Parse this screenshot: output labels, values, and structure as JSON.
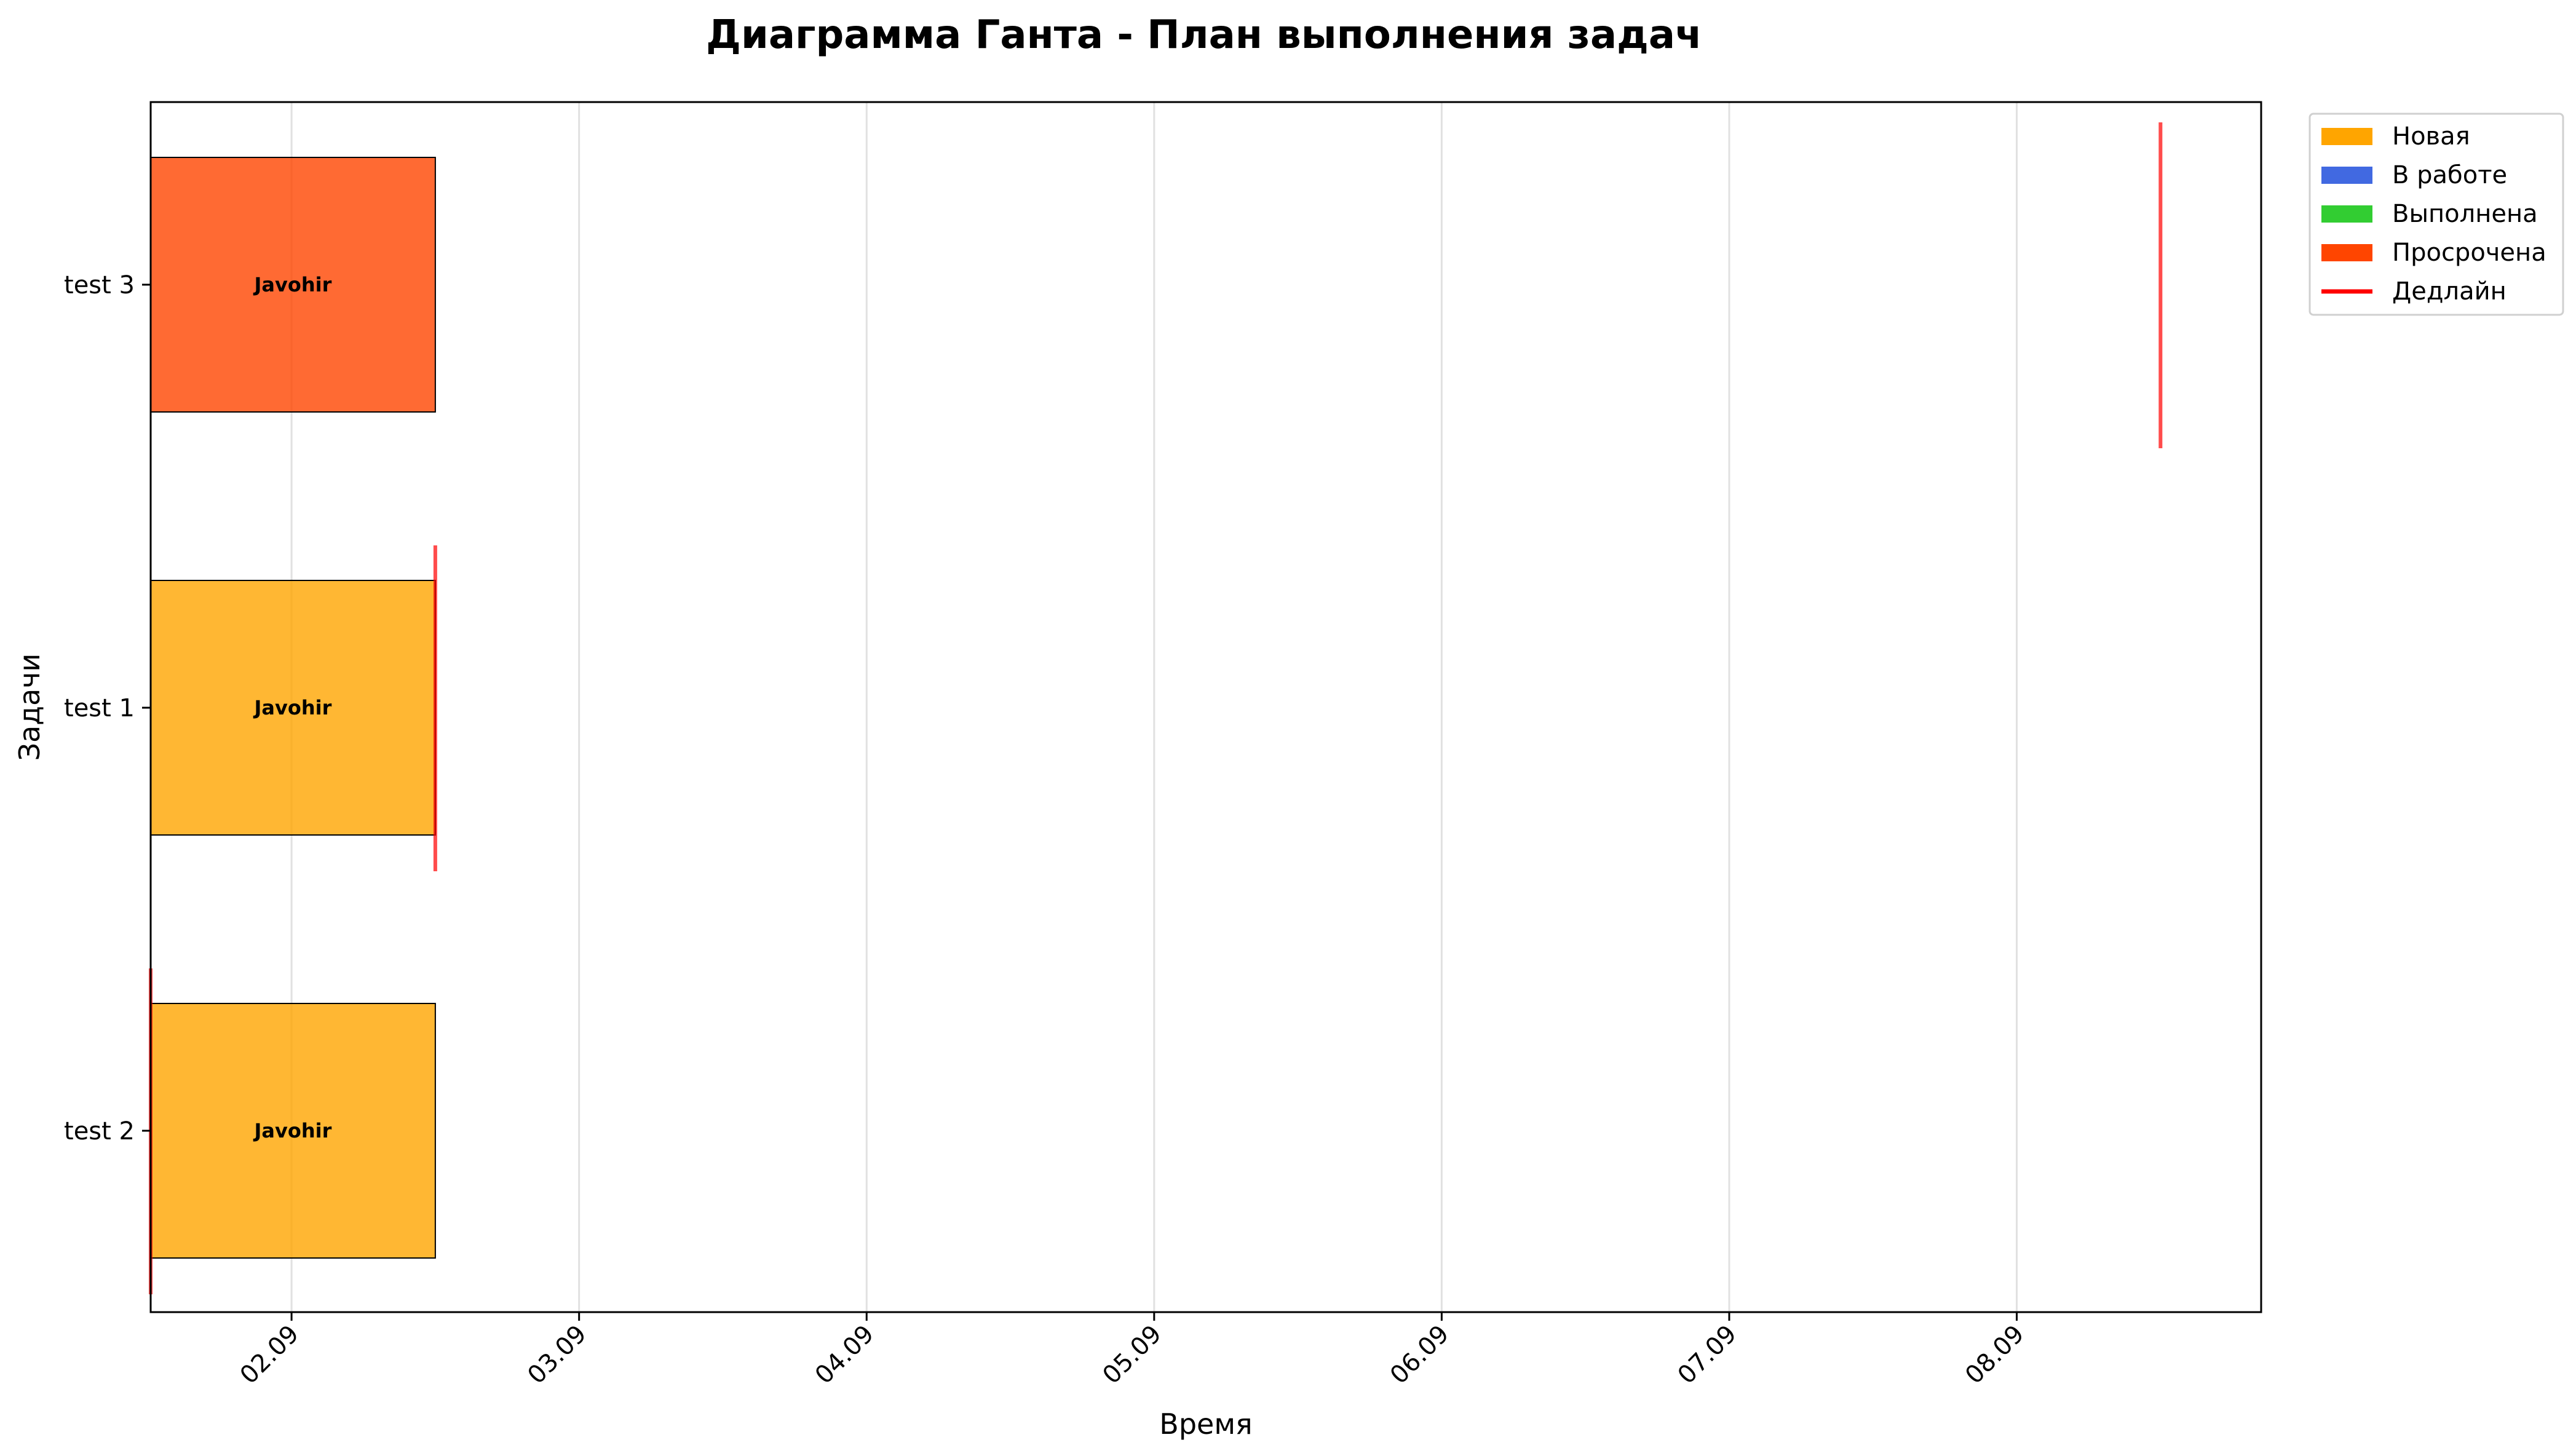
{
  "chart_data": {
    "type": "gantt",
    "title": "Диаграмма Ганта - План выполнения задач",
    "xlabel": "Время",
    "ylabel": "Задачи",
    "x_ticks": [
      "02.09",
      "03.09",
      "04.09",
      "05.09",
      "06.09",
      "07.09",
      "08.09"
    ],
    "x_range_days": [
      1.51,
      8.85
    ],
    "tasks": [
      {
        "name": "test 2",
        "assignee": "Javohir",
        "status": "Новая",
        "start": 1.51,
        "end": 2.5,
        "deadline": 1.51
      },
      {
        "name": "test 1",
        "assignee": "Javohir",
        "status": "Новая",
        "start": 1.51,
        "end": 2.5,
        "deadline": 2.5
      },
      {
        "name": "test 3",
        "assignee": "Javohir",
        "status": "Просрочена",
        "start": 1.51,
        "end": 2.5,
        "deadline": 8.5
      }
    ],
    "legend": {
      "placement": "outside-top-right",
      "items": [
        {
          "label": "Новая",
          "kind": "patch",
          "color": "#FFA500"
        },
        {
          "label": "В работе",
          "kind": "patch",
          "color": "#4169E1"
        },
        {
          "label": "Выполнена",
          "kind": "patch",
          "color": "#32CD32"
        },
        {
          "label": "Просрочена",
          "kind": "patch",
          "color": "#FF4500"
        },
        {
          "label": "Дедлайн",
          "kind": "line",
          "color": "#FF0000"
        }
      ]
    },
    "status_colors": {
      "Новая": "#FFA500",
      "В работе": "#4169E1",
      "Выполнена": "#32CD32",
      "Просрочена": "#FF4500"
    },
    "deadline_color": "#FF0000",
    "grid": "x"
  }
}
